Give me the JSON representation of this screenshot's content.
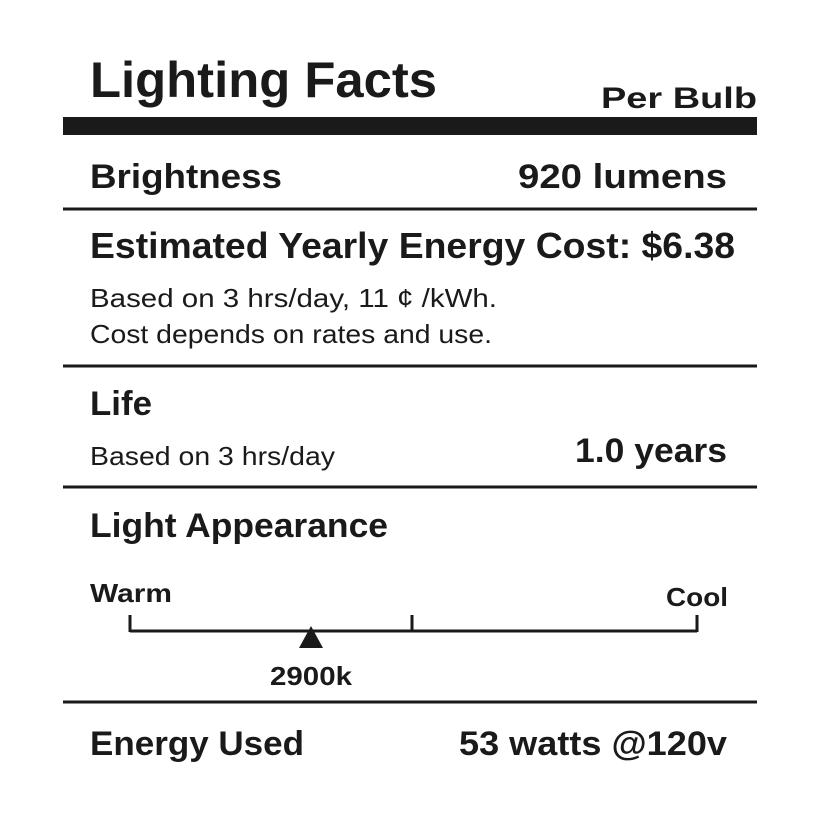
{
  "header": {
    "title": "Lighting Facts",
    "serving": "Per Bulb"
  },
  "brightness": {
    "label": "Brightness",
    "value": "920 lumens"
  },
  "cost": {
    "heading": "Estimated Yearly Energy Cost: $6.38",
    "notes": [
      "Based on 3 hrs/day, 11 ¢ /kWh.",
      "Cost depends on rates and use."
    ]
  },
  "life": {
    "label": "Life",
    "note": "Based on 3 hrs/day",
    "value": "1.0 years"
  },
  "appearance": {
    "label": "Light Appearance",
    "warm": "Warm",
    "cool": "Cool",
    "value": "2900k"
  },
  "energy": {
    "label": "Energy Used",
    "value": "53 watts @120v"
  }
}
